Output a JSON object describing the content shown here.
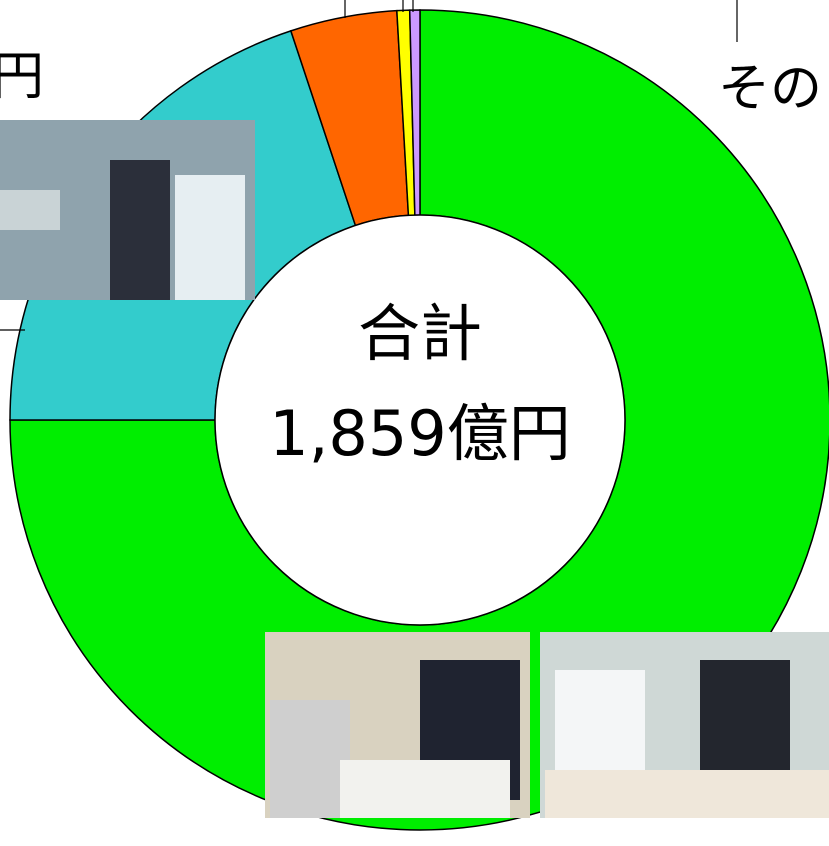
{
  "chart_data": {
    "type": "donut",
    "center_label": [
      "合計",
      "1,859億円"
    ],
    "annotations": [
      "円",
      "その"
    ],
    "categories": [
      null,
      null,
      null,
      null,
      null
    ],
    "values": [
      75,
      19.9,
      4.2,
      0.5,
      0.4
    ],
    "colors": [
      "#00ee00",
      "#33cccc",
      "#ff6600",
      "#ffff00",
      "#cc99ff"
    ]
  }
}
